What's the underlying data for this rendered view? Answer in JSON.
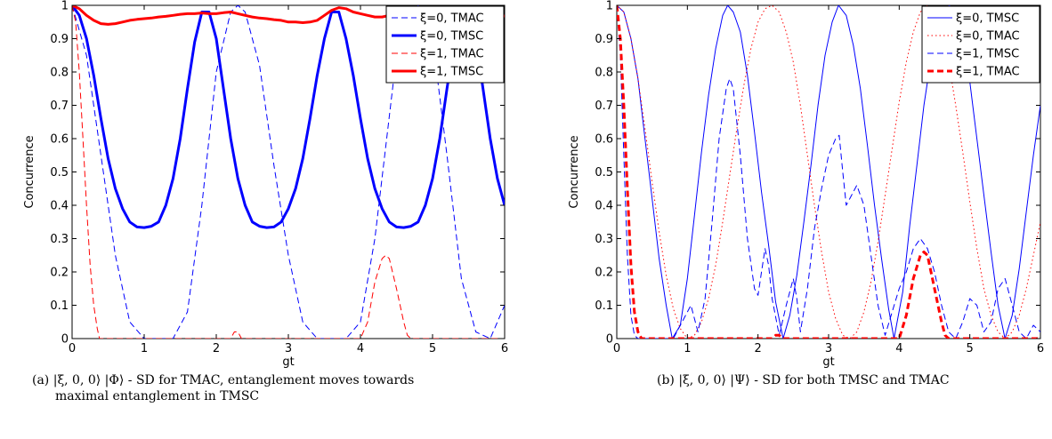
{
  "chart_data": [
    {
      "id": "a",
      "type": "line",
      "xlabel": "gt",
      "ylabel": "Concurrence",
      "xlim": [
        0,
        6
      ],
      "ylim": [
        0,
        1
      ],
      "xticks": [
        0,
        1,
        2,
        3,
        4,
        5,
        6
      ],
      "yticks": [
        0,
        0.1,
        0.2,
        0.3,
        0.4,
        0.5,
        0.6,
        0.7,
        0.8,
        0.9,
        1
      ],
      "ytick_labels": [
        "0",
        "0.1",
        "0.2",
        "0.3",
        "0.4",
        "0.5",
        "0.6",
        "0.7",
        "0.8",
        "0.9",
        "1"
      ],
      "legend_position": "top-right",
      "grid": false,
      "series": [
        {
          "name": "ξ=0, TMAC",
          "color": "#0000ff",
          "style": "dashed",
          "width": "thin",
          "x": [
            0,
            0.2,
            0.4,
            0.6,
            0.8,
            1.0,
            1.2,
            1.4,
            1.6,
            1.8,
            2.0,
            2.2,
            2.3,
            2.4,
            2.6,
            2.8,
            3.0,
            3.2,
            3.4,
            3.6,
            3.8,
            4.0,
            4.2,
            4.5,
            4.8,
            5.0,
            5.2,
            5.4,
            5.6,
            5.8,
            6.0
          ],
          "y": [
            1,
            0.85,
            0.55,
            0.25,
            0.05,
            0,
            0,
            0,
            0.08,
            0.4,
            0.8,
            0.98,
            1.0,
            0.98,
            0.82,
            0.52,
            0.25,
            0.05,
            0,
            0,
            0,
            0.05,
            0.3,
            0.85,
            1.0,
            0.9,
            0.55,
            0.18,
            0.02,
            0,
            0.1
          ]
        },
        {
          "name": "ξ=0, TMSC",
          "color": "#0000ff",
          "style": "solid",
          "width": "thick",
          "x": [
            0,
            0.1,
            0.2,
            0.3,
            0.4,
            0.5,
            0.6,
            0.7,
            0.8,
            0.9,
            1.0,
            1.1,
            1.2,
            1.3,
            1.4,
            1.5,
            1.6,
            1.7,
            1.8,
            1.9,
            2.0,
            2.1,
            2.2,
            2.3,
            2.4,
            2.5,
            2.6,
            2.7,
            2.8,
            2.9,
            3.0,
            3.1,
            3.2,
            3.3,
            3.4,
            3.5,
            3.6,
            3.7,
            3.8,
            3.9,
            4.0,
            4.1,
            4.2,
            4.3,
            4.4,
            4.5,
            4.6,
            4.7,
            4.8,
            4.9,
            5.0,
            5.1,
            5.2,
            5.3,
            5.4,
            5.5,
            5.6,
            5.7,
            5.8,
            5.9,
            6.0
          ],
          "y": [
            1,
            0.97,
            0.9,
            0.79,
            0.66,
            0.54,
            0.45,
            0.39,
            0.35,
            0.335,
            0.333,
            0.337,
            0.35,
            0.4,
            0.48,
            0.6,
            0.75,
            0.89,
            0.98,
            0.98,
            0.9,
            0.75,
            0.6,
            0.48,
            0.4,
            0.35,
            0.337,
            0.333,
            0.335,
            0.35,
            0.39,
            0.45,
            0.54,
            0.66,
            0.79,
            0.9,
            0.98,
            0.98,
            0.9,
            0.79,
            0.66,
            0.54,
            0.45,
            0.39,
            0.35,
            0.335,
            0.333,
            0.337,
            0.35,
            0.4,
            0.48,
            0.6,
            0.75,
            0.89,
            0.98,
            0.98,
            0.9,
            0.75,
            0.6,
            0.48,
            0.4
          ]
        },
        {
          "name": "ξ=1, TMAC",
          "color": "#ff0000",
          "style": "dashed",
          "width": "thin",
          "x": [
            0,
            0.05,
            0.1,
            0.15,
            0.2,
            0.25,
            0.3,
            0.35,
            0.38,
            0.4,
            2.2,
            2.25,
            2.3,
            2.35,
            4.0,
            4.1,
            4.2,
            4.3,
            4.35,
            4.4,
            4.5,
            4.6,
            4.65,
            4.7,
            6.0
          ],
          "y": [
            1,
            0.95,
            0.8,
            0.6,
            0.4,
            0.22,
            0.1,
            0.03,
            0,
            0,
            0,
            0.02,
            0.02,
            0,
            0,
            0.05,
            0.17,
            0.24,
            0.25,
            0.24,
            0.15,
            0.05,
            0.01,
            0,
            0
          ]
        },
        {
          "name": "ξ=1, TMSC",
          "color": "#ff0000",
          "style": "solid",
          "width": "thick",
          "x": [
            0,
            0.1,
            0.2,
            0.3,
            0.4,
            0.5,
            0.6,
            0.7,
            0.8,
            0.9,
            1.0,
            1.1,
            1.2,
            1.3,
            1.4,
            1.5,
            1.6,
            1.7,
            1.8,
            1.9,
            2.0,
            2.1,
            2.2,
            2.3,
            2.4,
            2.5,
            2.6,
            2.7,
            2.8,
            2.9,
            3.0,
            3.1,
            3.2,
            3.3,
            3.4,
            3.5,
            3.6,
            3.7,
            3.8,
            3.9,
            4.0,
            4.1,
            4.2,
            4.3,
            4.4,
            4.5,
            4.6,
            4.7,
            4.8,
            4.9,
            5.0,
            5.1,
            5.2,
            5.3,
            5.4,
            5.5,
            5.6,
            5.7,
            5.8,
            5.9,
            6.0
          ],
          "y": [
            1,
            0.99,
            0.97,
            0.955,
            0.945,
            0.943,
            0.945,
            0.95,
            0.955,
            0.958,
            0.96,
            0.962,
            0.965,
            0.967,
            0.97,
            0.973,
            0.975,
            0.975,
            0.977,
            0.975,
            0.975,
            0.978,
            0.98,
            0.975,
            0.97,
            0.965,
            0.962,
            0.96,
            0.957,
            0.955,
            0.95,
            0.95,
            0.948,
            0.95,
            0.955,
            0.97,
            0.985,
            0.993,
            0.99,
            0.98,
            0.975,
            0.97,
            0.965,
            0.965,
            0.97,
            0.975,
            0.98,
            0.982,
            0.985,
            0.987,
            0.988,
            0.985,
            0.982,
            0.982,
            0.985,
            0.985,
            0.98,
            0.975,
            0.97,
            0.968,
            0.968
          ]
        }
      ]
    },
    {
      "id": "b",
      "type": "line",
      "xlabel": "gt",
      "ylabel": "Concurrence",
      "xlim": [
        0,
        6
      ],
      "ylim": [
        0,
        1
      ],
      "xticks": [
        0,
        1,
        2,
        3,
        4,
        5,
        6
      ],
      "yticks": [
        0,
        0.1,
        0.2,
        0.3,
        0.4,
        0.5,
        0.6,
        0.7,
        0.8,
        0.9,
        1
      ],
      "ytick_labels": [
        "0",
        "0.1",
        "0.2",
        "0.3",
        "0.4",
        "0.5",
        "0.6",
        "0.7",
        "0.8",
        "0.9",
        "1"
      ],
      "legend_position": "top-right",
      "grid": false,
      "series": [
        {
          "name": "ξ=0, TMSC",
          "color": "#0000ff",
          "style": "solid",
          "width": "thin",
          "x": [
            0,
            0.1,
            0.2,
            0.3,
            0.4,
            0.5,
            0.6,
            0.7,
            0.785,
            0.9,
            1.0,
            1.1,
            1.2,
            1.3,
            1.4,
            1.5,
            1.57,
            1.65,
            1.75,
            1.85,
            1.95,
            2.05,
            2.15,
            2.25,
            2.356,
            2.45,
            2.55,
            2.65,
            2.75,
            2.85,
            2.95,
            3.05,
            3.14,
            3.25,
            3.35,
            3.45,
            3.55,
            3.65,
            3.75,
            3.85,
            3.927,
            4.05,
            4.15,
            4.25,
            4.35,
            4.45,
            4.55,
            4.65,
            4.712,
            4.8,
            4.9,
            5.0,
            5.1,
            5.2,
            5.3,
            5.4,
            5.498,
            5.6,
            5.7,
            5.8,
            5.9,
            6.0
          ],
          "y": [
            1,
            0.98,
            0.9,
            0.78,
            0.6,
            0.42,
            0.24,
            0.1,
            0,
            0.04,
            0.18,
            0.37,
            0.56,
            0.73,
            0.87,
            0.97,
            1.0,
            0.98,
            0.92,
            0.79,
            0.62,
            0.44,
            0.28,
            0.11,
            0,
            0.07,
            0.19,
            0.35,
            0.52,
            0.7,
            0.85,
            0.95,
            1.0,
            0.97,
            0.88,
            0.75,
            0.58,
            0.4,
            0.24,
            0.09,
            0,
            0.14,
            0.34,
            0.52,
            0.7,
            0.84,
            0.95,
            0.99,
            1.0,
            0.97,
            0.89,
            0.77,
            0.6,
            0.43,
            0.26,
            0.1,
            0,
            0.07,
            0.21,
            0.38,
            0.55,
            0.7
          ]
        },
        {
          "name": "ξ=0, TMAC",
          "color": "#ff0000",
          "style": "dotted",
          "width": "thin",
          "x": [
            0,
            0.1,
            0.2,
            0.3,
            0.4,
            0.5,
            0.6,
            0.7,
            0.8,
            0.9,
            1.0,
            1.1,
            1.2,
            1.3,
            1.4,
            1.5,
            1.6,
            1.7,
            1.8,
            1.9,
            2.0,
            2.1,
            2.2,
            2.3,
            2.4,
            2.5,
            2.6,
            2.7,
            2.8,
            2.9,
            3.0,
            3.1,
            3.2,
            3.3,
            3.4,
            3.5,
            3.6,
            3.7,
            3.8,
            3.9,
            4.0,
            4.1,
            4.2,
            4.3,
            4.4,
            4.5,
            4.6,
            4.7,
            4.8,
            4.9,
            5.0,
            5.1,
            5.2,
            5.3,
            5.4,
            5.5,
            5.6,
            5.7,
            5.8,
            5.9,
            6.0
          ],
          "y": [
            1,
            0.98,
            0.9,
            0.78,
            0.63,
            0.47,
            0.32,
            0.19,
            0.09,
            0.03,
            0,
            0.01,
            0.05,
            0.12,
            0.22,
            0.35,
            0.49,
            0.63,
            0.76,
            0.87,
            0.95,
            0.99,
            1.0,
            0.98,
            0.92,
            0.83,
            0.7,
            0.55,
            0.4,
            0.26,
            0.14,
            0.06,
            0.01,
            0,
            0.02,
            0.08,
            0.17,
            0.29,
            0.43,
            0.57,
            0.71,
            0.83,
            0.92,
            0.98,
            1.0,
            0.98,
            0.92,
            0.83,
            0.7,
            0.56,
            0.41,
            0.27,
            0.15,
            0.07,
            0.02,
            0,
            0.02,
            0.07,
            0.15,
            0.25,
            0.35
          ]
        },
        {
          "name": "ξ=1, TMSC",
          "color": "#0000ff",
          "style": "dashed",
          "width": "thin",
          "x": [
            0,
            0.05,
            0.1,
            0.15,
            0.2,
            0.25,
            0.3,
            0.4,
            0.6,
            0.8,
            0.95,
            1.05,
            1.15,
            1.25,
            1.35,
            1.45,
            1.55,
            1.6,
            1.65,
            1.75,
            1.85,
            1.95,
            2.0,
            2.05,
            2.1,
            2.15,
            2.2,
            2.3,
            2.4,
            2.5,
            2.55,
            2.6,
            2.7,
            2.8,
            2.9,
            3.0,
            3.1,
            3.15,
            3.2,
            3.25,
            3.3,
            3.4,
            3.5,
            3.6,
            3.7,
            3.8,
            3.9,
            4.0,
            4.1,
            4.2,
            4.3,
            4.4,
            4.5,
            4.6,
            4.7,
            4.8,
            4.9,
            5.0,
            5.1,
            5.2,
            5.3,
            5.4,
            5.5,
            5.6,
            5.7,
            5.8,
            5.9,
            6.0
          ],
          "y": [
            1,
            0.85,
            0.55,
            0.25,
            0.07,
            0.01,
            0,
            0,
            0,
            0,
            0.06,
            0.1,
            0.02,
            0.12,
            0.35,
            0.6,
            0.75,
            0.78,
            0.75,
            0.55,
            0.3,
            0.15,
            0.13,
            0.2,
            0.27,
            0.22,
            0.12,
            0.01,
            0.1,
            0.18,
            0.12,
            0.02,
            0.15,
            0.33,
            0.45,
            0.55,
            0.6,
            0.61,
            0.5,
            0.4,
            0.42,
            0.46,
            0.4,
            0.25,
            0.1,
            0.01,
            0.08,
            0.15,
            0.2,
            0.27,
            0.3,
            0.27,
            0.2,
            0.1,
            0.02,
            0,
            0.05,
            0.12,
            0.1,
            0.02,
            0.05,
            0.15,
            0.18,
            0.1,
            0.02,
            0,
            0.04,
            0.02
          ]
        },
        {
          "name": "ξ=1, TMAC",
          "color": "#ff0000",
          "style": "dashed",
          "width": "thick",
          "x": [
            0,
            0.05,
            0.1,
            0.15,
            0.2,
            0.25,
            0.3,
            0.35,
            0.4,
            2.2,
            2.25,
            2.3,
            2.35,
            4.0,
            4.1,
            4.2,
            4.3,
            4.35,
            4.4,
            4.5,
            4.6,
            4.65,
            4.7,
            6.0
          ],
          "y": [
            1,
            0.9,
            0.7,
            0.45,
            0.22,
            0.08,
            0.02,
            0,
            0,
            0,
            0.01,
            0.01,
            0,
            0,
            0.07,
            0.18,
            0.25,
            0.26,
            0.25,
            0.15,
            0.05,
            0.01,
            0,
            0
          ]
        }
      ]
    }
  ],
  "captions": [
    {
      "id": "a",
      "line1": "(a) |ξ, 0, 0⟩ |Φ⟩ - SD for TMAC, entanglement moves towards",
      "line2": "maximal entanglement in TMSC"
    },
    {
      "id": "b",
      "line1": "(b) |ξ, 0, 0⟩ |Ψ⟩ - SD for both TMSC and TMAC",
      "line2": ""
    }
  ]
}
